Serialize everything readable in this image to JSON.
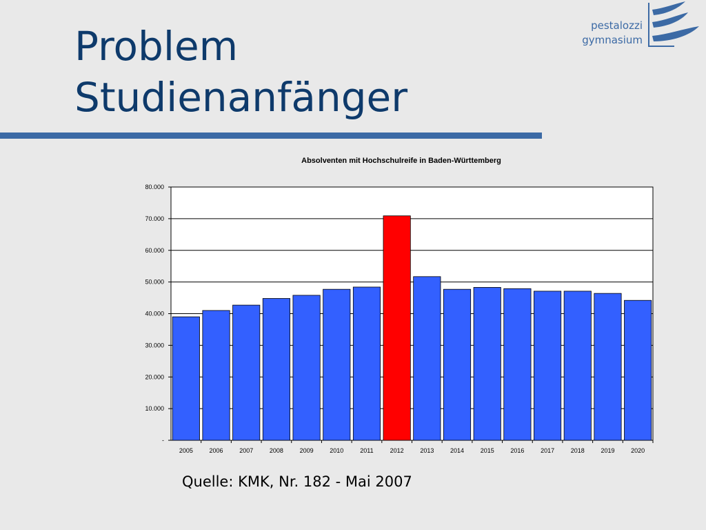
{
  "slide": {
    "title_line1": "Problem",
    "title_line2": "Studienanfänger",
    "source": "Quelle: KMK, Nr. 182 - Mai 2007"
  },
  "logo": {
    "line1": "pestalozzi",
    "line2": "gymnasium",
    "icon": "pestalozzi-wave-logo-icon",
    "color": "#3c6aa5"
  },
  "colors": {
    "title": "#0e3a6b",
    "rule": "#3c6aa5",
    "bar": "#3360ff",
    "highlight_bar": "#ff0000"
  },
  "chart_data": {
    "type": "bar",
    "title": "Absolventen mit Hochschulreife in Baden-Württemberg",
    "xlabel": "",
    "ylabel": "",
    "categories": [
      "2005",
      "2006",
      "2007",
      "2008",
      "2009",
      "2010",
      "2011",
      "2012",
      "2013",
      "2014",
      "2015",
      "2016",
      "2017",
      "2018",
      "2019",
      "2020"
    ],
    "values": [
      39000,
      41000,
      42700,
      44800,
      45800,
      47700,
      48400,
      70900,
      51700,
      47700,
      48300,
      47900,
      47100,
      47100,
      46400,
      44200
    ],
    "highlight_category": "2012",
    "ylim": [
      0,
      80000
    ],
    "yticks": [
      0,
      10000,
      20000,
      30000,
      40000,
      50000,
      60000,
      70000,
      80000
    ],
    "ytick_labels": [
      "-",
      "10.000",
      "20.000",
      "30.000",
      "40.000",
      "50.000",
      "60.000",
      "70.000",
      "80.000"
    ],
    "grid": true,
    "legend": "none"
  }
}
